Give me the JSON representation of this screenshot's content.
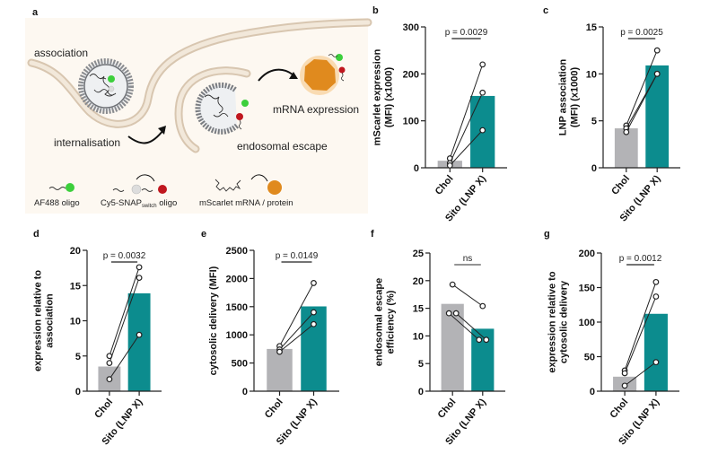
{
  "colors": {
    "chol_bar": "#b3b3b6",
    "sito_bar": "#0c8c8e",
    "axis": "#222222",
    "illustration_bg": "#fdf8f1",
    "membrane": "#eadccb",
    "membrane_edge": "#d8c6b0",
    "af488": "#3ccf3c",
    "cy5": "#c0171f",
    "protein": "#e08a1e"
  },
  "illustration": {
    "panel_letter": "a",
    "labels": {
      "association": "association",
      "internalisation": "internalisation",
      "endosomal_escape": "endosomal escape",
      "mrna_expression": "mRNA expression"
    },
    "legend": [
      {
        "icon": "af488-oligo-icon",
        "label": "AF488 oligo"
      },
      {
        "icon": "cy5-snap-oligo-icon",
        "label": "Cy5-SNAP",
        "subscript": "switch",
        "label_suffix": " oligo"
      },
      {
        "icon": "mscarlet-mrna-protein-icon",
        "label": "mScarlet mRNA / protein"
      }
    ]
  },
  "chart_data": [
    {
      "panel": "b",
      "type": "bar",
      "categories": [
        "Chol",
        "Sito (LNP X)"
      ],
      "values": [
        15,
        153
      ],
      "paired_points": [
        [
          20,
          220
        ],
        [
          10,
          160
        ],
        [
          5,
          80
        ]
      ],
      "ylabel": [
        "mScarlet expression",
        "(MFI) (x1000)"
      ],
      "ylim": [
        0,
        300
      ],
      "yticks": [
        0,
        100,
        200,
        300
      ],
      "significance": "p = 0.0029"
    },
    {
      "panel": "c",
      "type": "bar",
      "categories": [
        "Chol",
        "Sito (LNP X)"
      ],
      "values": [
        4.2,
        10.9
      ],
      "paired_points": [
        [
          4.5,
          12.5
        ],
        [
          4.2,
          10.0
        ],
        [
          3.8,
          10.0
        ]
      ],
      "ylabel": [
        "LNP association",
        "(MFI) (x1000)"
      ],
      "ylim": [
        0,
        15
      ],
      "yticks": [
        0,
        5,
        10,
        15
      ],
      "significance": "p = 0.0025"
    },
    {
      "panel": "d",
      "type": "bar",
      "categories": [
        "Chol",
        "Sito (LNP X)"
      ],
      "values": [
        3.5,
        13.9
      ],
      "paired_points": [
        [
          5.0,
          17.6
        ],
        [
          4.0,
          16.1
        ],
        [
          1.7,
          8.0
        ]
      ],
      "ylabel": [
        "expression relative to",
        "association"
      ],
      "ylim": [
        0,
        20
      ],
      "yticks": [
        0,
        5,
        10,
        15,
        20
      ],
      "significance": "p = 0.0032"
    },
    {
      "panel": "e",
      "type": "bar",
      "categories": [
        "Chol",
        "Sito (LNP X)"
      ],
      "values": [
        750,
        1505
      ],
      "paired_points": [
        [
          800,
          1920
        ],
        [
          740,
          1400
        ],
        [
          700,
          1190
        ]
      ],
      "ylabel": [
        "cytosolic delivery (MFI)"
      ],
      "ylim": [
        0,
        2500
      ],
      "yticks": [
        0,
        500,
        1000,
        1500,
        2000,
        2500
      ],
      "significance": "p = 0.0149"
    },
    {
      "panel": "f",
      "type": "bar",
      "categories": [
        "Chol",
        "Sito (LNP X)"
      ],
      "values": [
        15.8,
        11.3
      ],
      "paired_points": [
        [
          19.3,
          15.4
        ],
        [
          14.1,
          9.3
        ],
        [
          14.1,
          9.3
        ]
      ],
      "paired_offsets": [
        0,
        -1,
        1
      ],
      "ylabel": [
        "endosomal escape",
        "efficiency (%)"
      ],
      "ylim": [
        0,
        25
      ],
      "yticks": [
        0,
        5,
        10,
        15,
        20,
        25
      ],
      "significance": "ns"
    },
    {
      "panel": "g",
      "type": "bar",
      "categories": [
        "Chol",
        "Sito (LNP X)"
      ],
      "values": [
        21,
        112
      ],
      "paired_points": [
        [
          30,
          158
        ],
        [
          26,
          137
        ],
        [
          8,
          42
        ]
      ],
      "ylabel": [
        "expression relative to",
        "cytosolic delivery"
      ],
      "ylim": [
        0,
        200
      ],
      "yticks": [
        0,
        50,
        100,
        150,
        200
      ],
      "significance": "p = 0.0012"
    }
  ]
}
